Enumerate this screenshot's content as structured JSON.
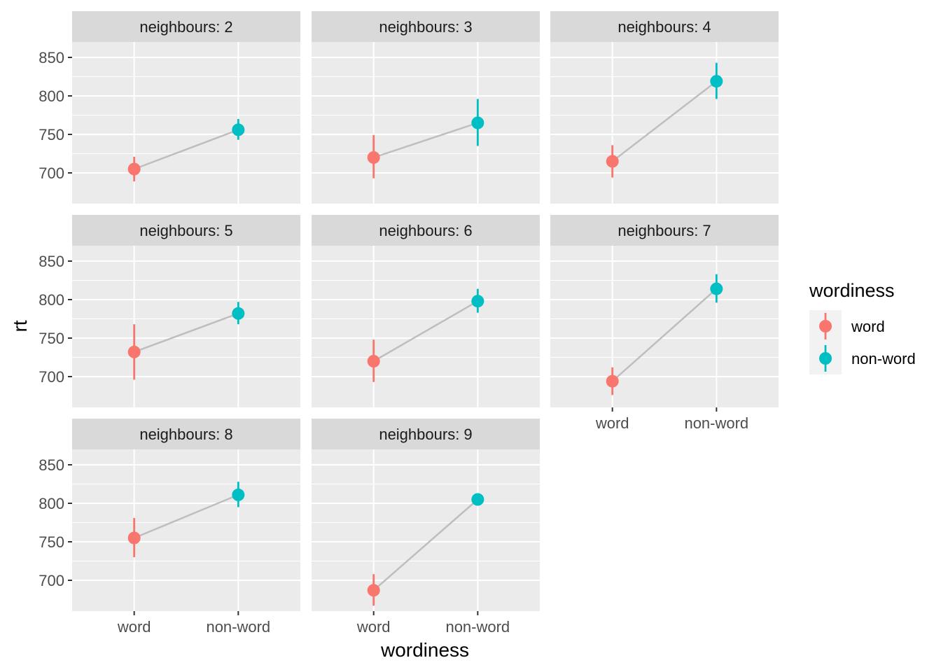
{
  "chart_data": {
    "type": "line",
    "facet_label_prefix": "neighbours: ",
    "xlabel": "wordiness",
    "ylabel": "rt",
    "categories": [
      "word",
      "non-word"
    ],
    "y_ticks": [
      700,
      750,
      800,
      850
    ],
    "ylim": [
      660,
      870
    ],
    "legend": {
      "title": "wordiness",
      "position": "right",
      "entries": [
        {
          "label": "word",
          "color": "#F8766D"
        },
        {
          "label": "non-word",
          "color": "#00BFC4"
        }
      ]
    },
    "colors": {
      "word": "#F8766D",
      "non_word": "#00BFC4",
      "line": "#BEBEBE",
      "panel_bg": "#EBEBEB",
      "strip_bg": "#D9D9D9",
      "grid": "#FFFFFF"
    },
    "grid": true,
    "panels": [
      {
        "facet": "2",
        "points": [
          {
            "x": "word",
            "y": 705,
            "ymin": 689,
            "ymax": 721
          },
          {
            "x": "non-word",
            "y": 756,
            "ymin": 743,
            "ymax": 770
          }
        ]
      },
      {
        "facet": "3",
        "points": [
          {
            "x": "word",
            "y": 720,
            "ymin": 693,
            "ymax": 749
          },
          {
            "x": "non-word",
            "y": 765,
            "ymin": 735,
            "ymax": 796
          }
        ]
      },
      {
        "facet": "4",
        "points": [
          {
            "x": "word",
            "y": 715,
            "ymin": 694,
            "ymax": 736
          },
          {
            "x": "non-word",
            "y": 819,
            "ymin": 796,
            "ymax": 843
          }
        ]
      },
      {
        "facet": "5",
        "points": [
          {
            "x": "word",
            "y": 732,
            "ymin": 696,
            "ymax": 768
          },
          {
            "x": "non-word",
            "y": 782,
            "ymin": 768,
            "ymax": 797
          }
        ]
      },
      {
        "facet": "6",
        "points": [
          {
            "x": "word",
            "y": 720,
            "ymin": 693,
            "ymax": 748
          },
          {
            "x": "non-word",
            "y": 798,
            "ymin": 783,
            "ymax": 814
          }
        ]
      },
      {
        "facet": "7",
        "points": [
          {
            "x": "word",
            "y": 694,
            "ymin": 676,
            "ymax": 712
          },
          {
            "x": "non-word",
            "y": 814,
            "ymin": 796,
            "ymax": 833
          }
        ]
      },
      {
        "facet": "8",
        "points": [
          {
            "x": "word",
            "y": 755,
            "ymin": 730,
            "ymax": 781
          },
          {
            "x": "non-word",
            "y": 811,
            "ymin": 795,
            "ymax": 828
          }
        ]
      },
      {
        "facet": "9",
        "points": [
          {
            "x": "word",
            "y": 687,
            "ymin": 667,
            "ymax": 708
          },
          {
            "x": "non-word",
            "y": 805,
            "ymin": 805,
            "ymax": 805
          }
        ]
      }
    ]
  }
}
